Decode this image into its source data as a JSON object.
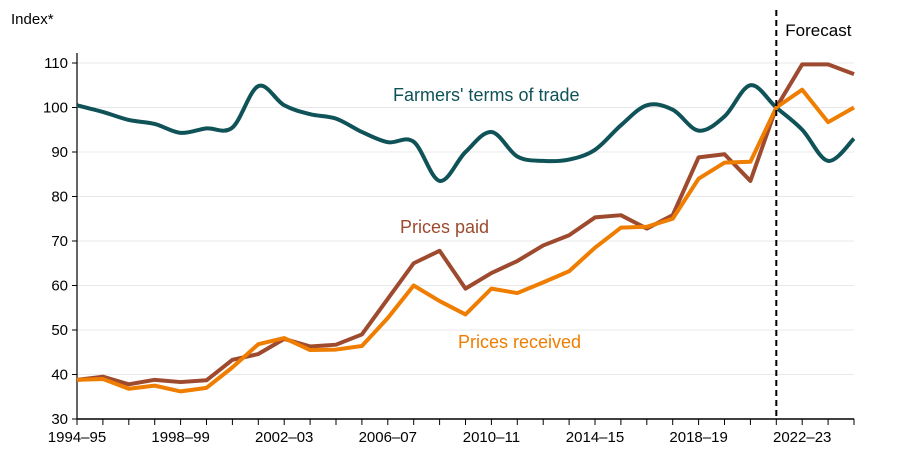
{
  "chart_data": {
    "type": "line",
    "ylabel": "Index*",
    "ylim": [
      30,
      115
    ],
    "yticks": [
      30,
      40,
      50,
      60,
      70,
      80,
      90,
      100,
      110
    ],
    "grid": true,
    "x": [
      "1994–95",
      "1995–96",
      "1996–97",
      "1997–98",
      "1998–99",
      "1999–00",
      "2000–01",
      "2001–02",
      "2002–03",
      "2003–04",
      "2004–05",
      "2005–06",
      "2006–07",
      "2007–08",
      "2008–09",
      "2009–10",
      "2010–11",
      "2011–12",
      "2012–13",
      "2013–14",
      "2014–15",
      "2015–16",
      "2016–17",
      "2017–18",
      "2018–19",
      "2019–20",
      "2020–21",
      "2021–22",
      "2022–23",
      "2023–24",
      "2024–25"
    ],
    "xtick_labels": [
      "1994–95",
      "1998–99",
      "2002–03",
      "2006–07",
      "2010–11",
      "2014–15",
      "2018–19",
      "2022–23"
    ],
    "forecast": {
      "label": "Forecast",
      "from": "2021–22"
    },
    "series": [
      {
        "name": "Farmers' terms of trade",
        "color": "#0f5257",
        "smooth": true,
        "values": [
          100.5,
          99,
          97.2,
          96.3,
          94.3,
          95.3,
          95.5,
          104.8,
          100.5,
          98.5,
          97.5,
          94.5,
          92.2,
          92.3,
          83.5,
          90,
          94.5,
          89,
          88,
          88.3,
          90.5,
          96,
          100.5,
          99.5,
          94.8,
          98,
          105,
          100,
          95,
          88,
          93
        ]
      },
      {
        "name": "Prices paid",
        "color": "#9e4a2e",
        "smooth": false,
        "values": [
          38.8,
          39.5,
          37.8,
          38.8,
          38.3,
          38.7,
          43.3,
          44.6,
          48,
          46.3,
          46.7,
          49,
          57,
          65,
          67.8,
          59.3,
          62.8,
          65.5,
          69,
          71.3,
          75.3,
          75.8,
          72.8,
          75.8,
          88.8,
          89.5,
          83.5,
          100,
          109.7,
          109.7,
          107.5
        ]
      },
      {
        "name": "Prices received",
        "color": "#ef7d00",
        "smooth": false,
        "values": [
          38.8,
          39,
          36.8,
          37.5,
          36.2,
          37,
          41.6,
          46.8,
          48.2,
          45.5,
          45.6,
          46.4,
          52.7,
          60,
          56.5,
          53.5,
          59.3,
          58.3,
          60.7,
          63.2,
          68.5,
          73,
          73.2,
          75,
          84,
          87.6,
          87.8,
          100,
          104,
          96.7,
          100
        ]
      }
    ]
  }
}
